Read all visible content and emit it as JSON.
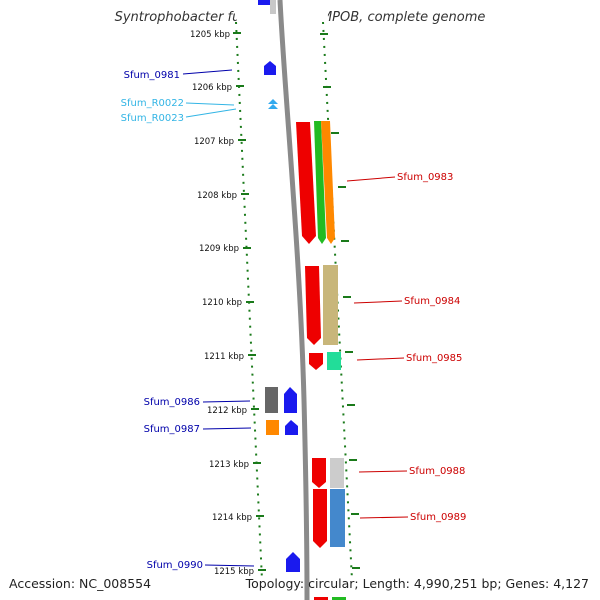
{
  "title": "Syntrophobacter fumaroxidans MPOB, complete genome",
  "kbp_labels": [
    "1205 kbp",
    "1206 kbp",
    "1207 kbp",
    "1208 kbp",
    "1209 kbp",
    "1210 kbp",
    "1211 kbp",
    "1212 kbp",
    "1213 kbp",
    "1214 kbp",
    "1215 kbp"
  ],
  "left_labels": [
    {
      "text": "Sfum_0981",
      "color": "#0000aa"
    },
    {
      "text": "Sfum_R0022",
      "color": "#33b5e5"
    },
    {
      "text": "Sfum_R0023",
      "color": "#33b5e5"
    },
    {
      "text": "Sfum_0986",
      "color": "#0000aa"
    },
    {
      "text": "Sfum_0987",
      "color": "#0000aa"
    },
    {
      "text": "Sfum_0990",
      "color": "#0000aa"
    }
  ],
  "right_labels": [
    {
      "text": "Sfum_0983",
      "color": "#cc0000"
    },
    {
      "text": "Sfum_0984",
      "color": "#cc0000"
    },
    {
      "text": "Sfum_0985",
      "color": "#cc0000"
    },
    {
      "text": "Sfum_0988",
      "color": "#cc0000"
    },
    {
      "text": "Sfum_0989",
      "color": "#cc0000"
    }
  ],
  "footer": {
    "accession": "Accession: NC_008554",
    "topology": "Topology: circular; Length: 4,990,251 bp; Genes: 4,127"
  }
}
